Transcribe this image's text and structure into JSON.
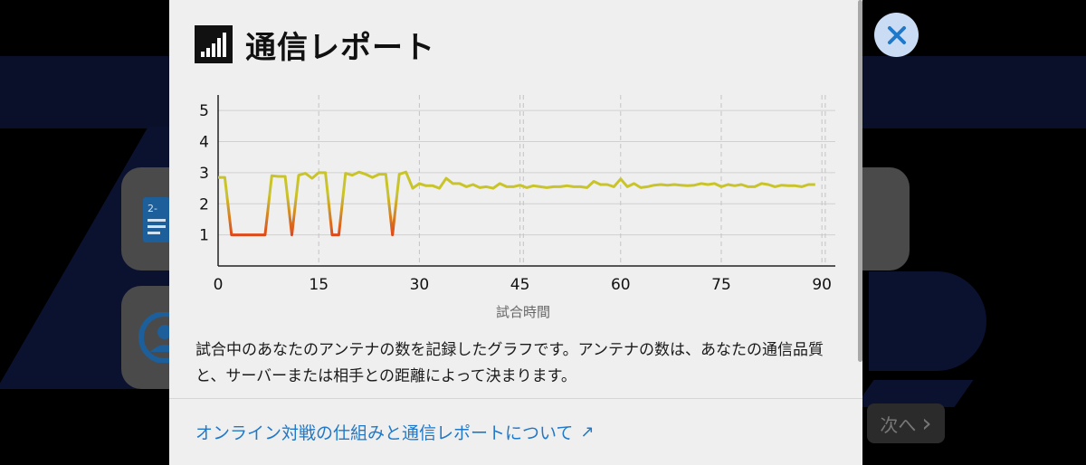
{
  "background": {
    "next_label": "次へ",
    "next_chevron": "›",
    "card_badge": "2-"
  },
  "modal": {
    "title": "通信レポート",
    "description": "試合中のあなたのアンテナの数を記録したグラフです。アンテナの数は、あなたの通信品質と、サーバーまたは相手との距離によって決まります。",
    "link_label": "オンライン対戦の仕組みと通信レポートについて",
    "link_arrow": "↗"
  },
  "colors": {
    "link": "#1f78c8",
    "line_good": "#c9c42a",
    "line_bad": "#e0481a",
    "close_bg": "#c9dcf3",
    "close_x": "#1f78c8"
  },
  "chart_data": {
    "type": "line",
    "xlabel": "試合時間",
    "ylabel": "",
    "xlim": [
      0,
      92
    ],
    "ylim": [
      0,
      5.5
    ],
    "x_ticks": [
      0,
      15,
      30,
      45,
      60,
      75,
      90
    ],
    "y_ticks": [
      1,
      2,
      3,
      4,
      5
    ],
    "half_markers": [
      45.5,
      90.5
    ],
    "grid": true,
    "series": [
      {
        "x": [
          0,
          1,
          2,
          3,
          4,
          5,
          6,
          7,
          8,
          9,
          10,
          11,
          12,
          13,
          14,
          15,
          16,
          17,
          18,
          19,
          20,
          21,
          22,
          23,
          24,
          25,
          26,
          27,
          28,
          29,
          30,
          31,
          32,
          33,
          34,
          35,
          36,
          37,
          38,
          39,
          40,
          41,
          42,
          43,
          44,
          45,
          46,
          47,
          48,
          49,
          50,
          51,
          52,
          53,
          54,
          55,
          56,
          57,
          58,
          59,
          60,
          61,
          62,
          63,
          64,
          65,
          66,
          67,
          68,
          69,
          70,
          71,
          72,
          73,
          74,
          75,
          76,
          77,
          78,
          79,
          80,
          81,
          82,
          83,
          84,
          85,
          86,
          87,
          88,
          89
        ],
        "values": [
          2.85,
          2.85,
          1.0,
          1.0,
          1.0,
          1.0,
          1.0,
          1.0,
          2.9,
          2.88,
          2.88,
          1.0,
          2.92,
          2.98,
          2.82,
          3.0,
          3.0,
          1.0,
          1.0,
          2.98,
          2.92,
          3.02,
          2.95,
          2.85,
          2.95,
          2.95,
          1.0,
          2.95,
          3.02,
          2.5,
          2.65,
          2.58,
          2.58,
          2.5,
          2.82,
          2.65,
          2.65,
          2.55,
          2.62,
          2.52,
          2.55,
          2.5,
          2.65,
          2.55,
          2.55,
          2.6,
          2.52,
          2.58,
          2.55,
          2.52,
          2.55,
          2.55,
          2.58,
          2.55,
          2.55,
          2.52,
          2.72,
          2.62,
          2.62,
          2.55,
          2.8,
          2.55,
          2.65,
          2.52,
          2.55,
          2.6,
          2.62,
          2.6,
          2.62,
          2.6,
          2.58,
          2.6,
          2.65,
          2.62,
          2.65,
          2.55,
          2.62,
          2.58,
          2.62,
          2.55,
          2.55,
          2.65,
          2.62,
          2.55,
          2.6,
          2.58,
          2.58,
          2.55,
          2.62,
          2.62
        ]
      }
    ]
  }
}
